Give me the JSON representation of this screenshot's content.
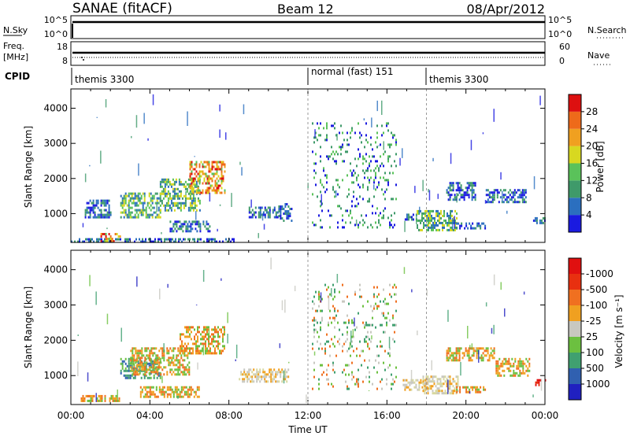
{
  "header": {
    "station": "SANAE (fitACF)",
    "beam": "Beam 12",
    "date": "08/Apr/2012"
  },
  "strips": {
    "nsky": {
      "left_label": "N.Sky",
      "ticks_left": [
        "10^5",
        "10^0"
      ],
      "ticks_right": [
        "10^5",
        "10^0"
      ],
      "right_label": "N.Search"
    },
    "freq": {
      "left_label_1": "Freq.",
      "left_label_2": "[MHz]",
      "ticks_left": [
        "18",
        "8"
      ],
      "ticks_right": [
        "60",
        "0"
      ],
      "right_label": "Nave"
    },
    "cpid": {
      "label": "CPID",
      "segments": [
        {
          "label": "themis 3300",
          "start_hour": 0
        },
        {
          "label": "normal (fast) 151",
          "start_hour": 12
        },
        {
          "label": "themis 3300",
          "start_hour": 18
        }
      ]
    }
  },
  "chart_data": [
    {
      "type": "heatmap",
      "title": "",
      "ylabel": "Slant Range [km]",
      "xlabel": "",
      "xlim": [
        0,
        24
      ],
      "ylim": [
        180,
        4550
      ],
      "yticks": [
        1000,
        2000,
        3000,
        4000
      ],
      "colorbar": {
        "label": "Power [dB]",
        "ticks": [
          "4",
          "8",
          "12",
          "16",
          "20",
          "24",
          "28"
        ],
        "colors": [
          "#1a1ae0",
          "#2b6fbf",
          "#3f9a6a",
          "#5ac25a",
          "#d8d820",
          "#f0a020",
          "#ee6a1a",
          "#dd1010"
        ]
      },
      "regions": [
        {
          "t0": 0.0,
          "t1": 8.5,
          "r0": 180,
          "r1": 300,
          "level": "low"
        },
        {
          "t0": 0.7,
          "t1": 2.0,
          "r0": 900,
          "r1": 1400,
          "level": "low"
        },
        {
          "t0": 1.5,
          "t1": 2.5,
          "r0": 200,
          "r1": 450,
          "level": "high"
        },
        {
          "t0": 2.5,
          "t1": 4.5,
          "r0": 900,
          "r1": 1600,
          "level": "mid"
        },
        {
          "t0": 4.5,
          "t1": 6.5,
          "r0": 1100,
          "r1": 2000,
          "level": "mid"
        },
        {
          "t0": 6.0,
          "t1": 7.8,
          "r0": 1600,
          "r1": 2500,
          "level": "high"
        },
        {
          "t0": 5.0,
          "t1": 7.0,
          "r0": 500,
          "r1": 800,
          "level": "low"
        },
        {
          "t0": 9.0,
          "t1": 10.5,
          "r0": 900,
          "r1": 1200,
          "level": "low"
        },
        {
          "t0": 10.5,
          "t1": 11.2,
          "r0": 800,
          "r1": 1300,
          "level": "low"
        },
        {
          "t0": 12.2,
          "t1": 16.5,
          "r0": 600,
          "r1": 3600,
          "level": "sparse"
        },
        {
          "t0": 16.9,
          "t1": 17.5,
          "r0": 800,
          "r1": 1000,
          "level": "low"
        },
        {
          "t0": 17.5,
          "t1": 19.5,
          "r0": 500,
          "r1": 1100,
          "level": "mid"
        },
        {
          "t0": 19.5,
          "t1": 21.0,
          "r0": 550,
          "r1": 750,
          "level": "low"
        },
        {
          "t0": 19.0,
          "t1": 20.5,
          "r0": 1400,
          "r1": 1900,
          "level": "low"
        },
        {
          "t0": 21.0,
          "t1": 23.0,
          "r0": 1300,
          "r1": 1700,
          "level": "low"
        },
        {
          "t0": 23.4,
          "t1": 24.0,
          "r0": 700,
          "r1": 900,
          "level": "low"
        }
      ]
    },
    {
      "type": "heatmap",
      "title": "",
      "ylabel": "Slant Range [km]",
      "xlabel": "Time UT",
      "xlim": [
        0,
        24
      ],
      "ylim": [
        180,
        4550
      ],
      "yticks": [
        1000,
        2000,
        3000,
        4000
      ],
      "xticks": [
        "00:00",
        "04:00",
        "08:00",
        "12:00",
        "16:00",
        "20:00",
        "00:00"
      ],
      "colorbar": {
        "label": "Velocity [m s⁻¹]",
        "ticks": [
          "1000",
          "500",
          "100",
          "25",
          "-25",
          "-100",
          "-500",
          "-1000"
        ],
        "colors": [
          "#2020c0",
          "#3060b0",
          "#40a070",
          "#6cc040",
          "#c8c8c0",
          "#f0a020",
          "#f07020",
          "#e83010",
          "#e01010"
        ]
      },
      "regions": [
        {
          "t0": 0.5,
          "t1": 2.5,
          "r0": 300,
          "r1": 450,
          "level": "orange"
        },
        {
          "t0": 2.5,
          "t1": 4.5,
          "r0": 900,
          "r1": 1500,
          "level": "green"
        },
        {
          "t0": 3.0,
          "t1": 6.0,
          "r0": 1000,
          "r1": 1800,
          "level": "orange"
        },
        {
          "t0": 5.5,
          "t1": 7.8,
          "r0": 1600,
          "r1": 2400,
          "level": "orange"
        },
        {
          "t0": 3.5,
          "t1": 6.5,
          "r0": 400,
          "r1": 700,
          "level": "orange"
        },
        {
          "t0": 8.5,
          "t1": 11.0,
          "r0": 800,
          "r1": 1200,
          "level": "gray"
        },
        {
          "t0": 12.2,
          "t1": 16.5,
          "r0": 600,
          "r1": 3600,
          "level": "sparse"
        },
        {
          "t0": 16.8,
          "t1": 18.0,
          "r0": 600,
          "r1": 900,
          "level": "gray"
        },
        {
          "t0": 17.8,
          "t1": 19.6,
          "r0": 500,
          "r1": 1000,
          "level": "gray"
        },
        {
          "t0": 19.5,
          "t1": 21.0,
          "r0": 500,
          "r1": 700,
          "level": "orange"
        },
        {
          "t0": 19.0,
          "t1": 21.5,
          "r0": 1400,
          "r1": 1800,
          "level": "orange"
        },
        {
          "t0": 21.5,
          "t1": 23.2,
          "r0": 1000,
          "r1": 1500,
          "level": "orange"
        },
        {
          "t0": 23.5,
          "t1": 24.0,
          "r0": 700,
          "r1": 900,
          "level": "red"
        }
      ]
    }
  ]
}
